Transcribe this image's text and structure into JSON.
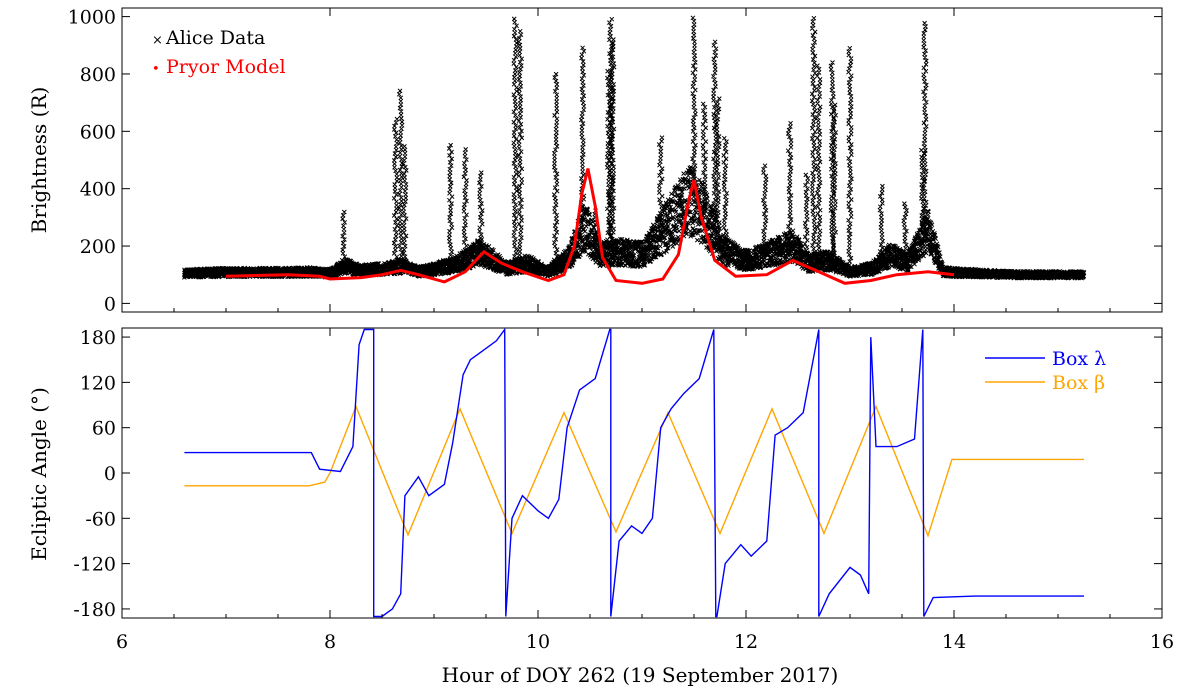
{
  "figure": {
    "xlabel": "Hour of DOY 262 (19 September 2017)",
    "xticks": [
      "6",
      "8",
      "10",
      "12",
      "14",
      "16"
    ]
  },
  "chart_data": [
    {
      "type": "scatter",
      "ylabel": "Brightness (R)",
      "xlim": [
        6,
        16
      ],
      "ylim": [
        -30,
        1030
      ],
      "yticks": [
        "0",
        "200",
        "400",
        "600",
        "800",
        "1000"
      ],
      "ytick_values": [
        0,
        200,
        400,
        600,
        800,
        1000
      ],
      "legend_position": "top-left",
      "colors": {
        "data": "#000000",
        "model": "#ff0000"
      },
      "series": [
        {
          "name": "Alice Data",
          "marker": "x",
          "description_points": "dense series, baseline around 100 R",
          "baseline_x": [
            6.6,
            7.0,
            7.5,
            7.8,
            8.0,
            8.15,
            8.3,
            8.5,
            8.7,
            8.85,
            9.0,
            9.2,
            9.45,
            9.7,
            9.9,
            10.1,
            10.3,
            10.45,
            10.6,
            10.8,
            11.0,
            11.2,
            11.4,
            11.5,
            11.6,
            11.8,
            12.0,
            12.2,
            12.45,
            12.6,
            12.8,
            13.0,
            13.2,
            13.4,
            13.55,
            13.75,
            13.9,
            14.2,
            14.6,
            15.0,
            15.25
          ],
          "baseline_y": [
            105,
            108,
            108,
            110,
            105,
            130,
            115,
            120,
            130,
            110,
            120,
            135,
            180,
            120,
            140,
            110,
            160,
            270,
            170,
            180,
            170,
            250,
            340,
            360,
            300,
            180,
            150,
            170,
            200,
            140,
            150,
            110,
            120,
            170,
            140,
            250,
            110,
            105,
            100,
            100,
            100
          ],
          "spikes": [
            [
              8.13,
              320
            ],
            [
              8.68,
              750
            ],
            [
              8.63,
              650
            ],
            [
              8.72,
              550
            ],
            [
              9.16,
              560
            ],
            [
              9.3,
              540
            ],
            [
              9.45,
              460
            ],
            [
              9.78,
              1000
            ],
            [
              9.83,
              960
            ],
            [
              10.17,
              800
            ],
            [
              10.43,
              900
            ],
            [
              10.55,
              330
            ],
            [
              10.7,
              1000
            ],
            [
              10.72,
              920
            ],
            [
              10.68,
              820
            ],
            [
              11.18,
              590
            ],
            [
              11.38,
              380
            ],
            [
              11.5,
              1000
            ],
            [
              11.6,
              700
            ],
            [
              11.7,
              920
            ],
            [
              11.73,
              720
            ],
            [
              11.8,
              580
            ],
            [
              12.18,
              480
            ],
            [
              12.42,
              640
            ],
            [
              12.58,
              450
            ],
            [
              12.65,
              1000
            ],
            [
              12.7,
              830
            ],
            [
              12.83,
              850
            ],
            [
              12.85,
              700
            ],
            [
              13.0,
              890
            ],
            [
              13.3,
              420
            ],
            [
              13.53,
              350
            ],
            [
              13.7,
              540
            ],
            [
              13.72,
              980
            ]
          ]
        },
        {
          "name": "Pryor Model",
          "x": [
            7.0,
            7.6,
            7.9,
            8.0,
            8.3,
            8.5,
            8.68,
            8.85,
            9.1,
            9.3,
            9.48,
            9.65,
            9.85,
            10.1,
            10.25,
            10.35,
            10.42,
            10.48,
            10.55,
            10.62,
            10.75,
            11.0,
            11.2,
            11.35,
            11.45,
            11.5,
            11.57,
            11.7,
            11.9,
            12.2,
            12.45,
            12.7,
            12.95,
            13.2,
            13.45,
            13.75,
            14.0
          ],
          "y": [
            95,
            100,
            95,
            85,
            90,
            100,
            115,
            100,
            75,
            110,
            180,
            140,
            110,
            80,
            100,
            200,
            380,
            470,
            340,
            160,
            80,
            70,
            85,
            170,
            360,
            430,
            300,
            150,
            95,
            100,
            150,
            110,
            70,
            80,
            100,
            110,
            100
          ]
        }
      ],
      "legend": [
        "Alice Data",
        "Pryor Model"
      ]
    },
    {
      "type": "line",
      "ylabel": "Ecliptic Angle (°)",
      "xlim": [
        6,
        16
      ],
      "ylim": [
        -192,
        192
      ],
      "yticks": [
        "180",
        "120",
        "60",
        "0",
        "-60",
        "-120",
        "-180"
      ],
      "ytick_values": [
        180,
        120,
        60,
        0,
        -60,
        -120,
        -180
      ],
      "legend_position": "top-right",
      "colors": {
        "lambda": "#0000ff",
        "beta": "#ffa500"
      },
      "series": [
        {
          "name": "Box λ",
          "x": [
            6.6,
            7.82,
            7.9,
            8.1,
            8.22,
            8.28,
            8.33,
            8.42,
            8.42,
            8.5,
            8.6,
            8.68,
            8.72,
            8.85,
            8.95,
            9.1,
            9.18,
            9.28,
            9.35,
            9.45,
            9.6,
            9.68,
            9.69,
            9.69,
            9.75,
            9.85,
            10.0,
            10.1,
            10.2,
            10.28,
            10.4,
            10.55,
            10.69,
            10.7,
            10.7,
            10.78,
            10.9,
            11.0,
            11.1,
            11.18,
            11.28,
            11.4,
            11.55,
            11.69,
            11.71,
            11.72,
            11.8,
            11.95,
            12.05,
            12.2,
            12.28,
            12.4,
            12.55,
            12.66,
            12.7,
            12.7,
            12.8,
            13.0,
            13.1,
            13.18,
            13.2,
            13.25,
            13.45,
            13.62,
            13.7,
            13.71,
            13.8,
            14.2,
            15.25
          ],
          "y": [
            27,
            27,
            5,
            2,
            35,
            170,
            190,
            190,
            -190,
            -190,
            -180,
            -160,
            -30,
            -5,
            -30,
            -15,
            40,
            130,
            150,
            160,
            175,
            190,
            -190,
            -190,
            -60,
            -30,
            -50,
            -60,
            -35,
            60,
            110,
            125,
            190,
            190,
            -190,
            -90,
            -70,
            -80,
            -60,
            60,
            85,
            105,
            125,
            190,
            -190,
            -190,
            -120,
            -95,
            -110,
            -90,
            50,
            60,
            80,
            160,
            190,
            -190,
            -160,
            -125,
            -135,
            -160,
            180,
            35,
            35,
            45,
            190,
            -190,
            -165,
            -163,
            -163
          ]
        },
        {
          "name": "Box β",
          "x": [
            6.6,
            7.8,
            7.95,
            8.0,
            8.25,
            8.75,
            9.25,
            9.75,
            10.25,
            10.75,
            11.25,
            11.75,
            12.25,
            12.75,
            13.25,
            13.75,
            13.98,
            15.25
          ],
          "y": [
            -17,
            -17,
            -12,
            0,
            88,
            -82,
            85,
            -80,
            80,
            -78,
            80,
            -80,
            85,
            -80,
            88,
            -83,
            18,
            18
          ]
        }
      ],
      "legend": [
        "Box λ",
        "Box β"
      ]
    }
  ]
}
